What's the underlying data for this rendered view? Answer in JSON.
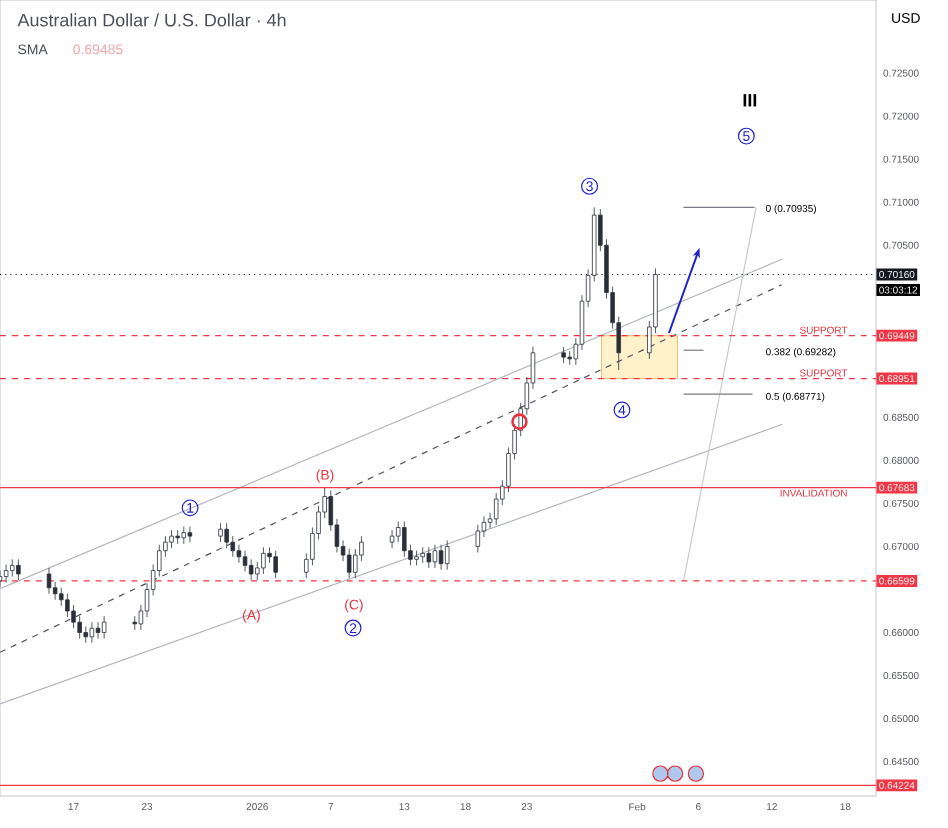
{
  "chart_data": {
    "type": "candlestick",
    "title": "Australian Dollar / U.S. Dollar · 4h",
    "ylabel": "USD",
    "color": "#2a2e39",
    "x": [
      "2025-12-11T00:00",
      "2025-12-11T12:00",
      "2025-12-12T00:00",
      "2025-12-12T12:00",
      "2025-12-15T00:00",
      "2025-12-15T12:00",
      "2025-12-16T00:00",
      "2025-12-16T12:00",
      "2025-12-17T00:00",
      "2025-12-17T12:00",
      "2025-12-18T00:00",
      "2025-12-18T12:00",
      "2025-12-19T00:00",
      "2025-12-19T12:00",
      "2025-12-22T00:00",
      "2025-12-22T12:00",
      "2025-12-23T00:00",
      "2025-12-23T12:00",
      "2025-12-24T00:00",
      "2025-12-24T12:00",
      "2025-12-25T00:00",
      "2025-12-25T12:00",
      "2025-12-26T00:00",
      "2025-12-26T12:00",
      "2025-12-29T00:00",
      "2025-12-29T12:00",
      "2025-12-30T00:00",
      "2025-12-30T12:00",
      "2025-12-31T00:00",
      "2025-12-31T12:00",
      "2026-01-01T00:00",
      "2026-01-01T12:00",
      "2026-01-02T00:00",
      "2026-01-02T12:00",
      "2026-01-05T00:00",
      "2026-01-05T12:00",
      "2026-01-06T00:00",
      "2026-01-06T12:00",
      "2026-01-07T00:00",
      "2026-01-07T12:00",
      "2026-01-08T00:00",
      "2026-01-08T12:00",
      "2026-01-09T00:00",
      "2026-01-09T12:00",
      "2026-01-12T00:00",
      "2026-01-12T12:00",
      "2026-01-13T00:00",
      "2026-01-13T12:00",
      "2026-01-14T00:00",
      "2026-01-14T12:00",
      "2026-01-15T00:00",
      "2026-01-15T12:00",
      "2026-01-16T00:00",
      "2026-01-16T12:00",
      "2026-01-19T00:00",
      "2026-01-19T12:00",
      "2026-01-20T00:00",
      "2026-01-20T12:00",
      "2026-01-21T00:00",
      "2026-01-21T12:00",
      "2026-01-22T00:00",
      "2026-01-22T12:00",
      "2026-01-23T00:00",
      "2026-01-23T12:00",
      "2026-01-26T00:00",
      "2026-01-26T12:00",
      "2026-01-27T00:00",
      "2026-01-27T12:00",
      "2026-01-28T00:00",
      "2026-01-28T12:00",
      "2026-01-29T00:00",
      "2026-01-29T12:00",
      "2026-01-30T00:00",
      "2026-01-30T12:00",
      "2026-02-02T00:00",
      "2026-02-02T12:00"
    ],
    "ohlc": [
      [
        0.666,
        0.6672,
        0.6653,
        0.6665
      ],
      [
        0.6665,
        0.6679,
        0.6658,
        0.6672
      ],
      [
        0.6672,
        0.6685,
        0.6665,
        0.6678
      ],
      [
        0.6678,
        0.6685,
        0.6661,
        0.6668
      ],
      [
        0.6668,
        0.6675,
        0.6645,
        0.6652
      ],
      [
        0.6652,
        0.6659,
        0.6638,
        0.6645
      ],
      [
        0.6645,
        0.6652,
        0.6631,
        0.6638
      ],
      [
        0.6638,
        0.6645,
        0.6618,
        0.6625
      ],
      [
        0.6625,
        0.6632,
        0.6605,
        0.6612
      ],
      [
        0.6612,
        0.6619,
        0.6593,
        0.66
      ],
      [
        0.66,
        0.6607,
        0.6588,
        0.6595
      ],
      [
        0.6595,
        0.6612,
        0.6588,
        0.6605
      ],
      [
        0.6605,
        0.6612,
        0.6593,
        0.66
      ],
      [
        0.66,
        0.6619,
        0.6593,
        0.6612
      ],
      [
        0.6612,
        0.6619,
        0.6603,
        0.661
      ],
      [
        0.661,
        0.6632,
        0.6603,
        0.6625
      ],
      [
        0.6625,
        0.6657,
        0.6618,
        0.665
      ],
      [
        0.665,
        0.6679,
        0.6643,
        0.6672
      ],
      [
        0.6672,
        0.6702,
        0.6665,
        0.6695
      ],
      [
        0.6695,
        0.6712,
        0.6688,
        0.6705
      ],
      [
        0.6705,
        0.6719,
        0.6698,
        0.6712
      ],
      [
        0.6712,
        0.6719,
        0.6703,
        0.671
      ],
      [
        0.671,
        0.6723,
        0.6703,
        0.6716
      ],
      [
        0.6716,
        0.6723,
        0.6705,
        0.6712
      ],
      [
        0.6712,
        0.6727,
        0.6705,
        0.672
      ],
      [
        0.672,
        0.6727,
        0.6698,
        0.6705
      ],
      [
        0.6705,
        0.6712,
        0.6688,
        0.6695
      ],
      [
        0.6695,
        0.6702,
        0.6681,
        0.6688
      ],
      [
        0.6688,
        0.6695,
        0.6671,
        0.6678
      ],
      [
        0.6678,
        0.6685,
        0.6661,
        0.6668
      ],
      [
        0.6668,
        0.6682,
        0.6661,
        0.6675
      ],
      [
        0.6675,
        0.6699,
        0.6668,
        0.6692
      ],
      [
        0.6692,
        0.6699,
        0.6681,
        0.6688
      ],
      [
        0.6688,
        0.6695,
        0.6663,
        0.667
      ],
      [
        0.667,
        0.6692,
        0.6663,
        0.6685
      ],
      [
        0.6685,
        0.6722,
        0.6678,
        0.6715
      ],
      [
        0.6715,
        0.6747,
        0.6708,
        0.674
      ],
      [
        0.674,
        0.6768,
        0.6733,
        0.6758
      ],
      [
        0.6758,
        0.6765,
        0.6718,
        0.6725
      ],
      [
        0.6725,
        0.6732,
        0.6693,
        0.67
      ],
      [
        0.67,
        0.6707,
        0.6683,
        0.669
      ],
      [
        0.669,
        0.6697,
        0.6663,
        0.667
      ],
      [
        0.667,
        0.6697,
        0.6663,
        0.669
      ],
      [
        0.669,
        0.6712,
        0.6683,
        0.6705
      ],
      [
        0.6705,
        0.6719,
        0.6698,
        0.6712
      ],
      [
        0.6712,
        0.6729,
        0.6705,
        0.6722
      ],
      [
        0.6722,
        0.6729,
        0.6688,
        0.6695
      ],
      [
        0.6695,
        0.6702,
        0.6678,
        0.6685
      ],
      [
        0.6685,
        0.6695,
        0.6678,
        0.6688
      ],
      [
        0.6688,
        0.6699,
        0.6681,
        0.6692
      ],
      [
        0.6692,
        0.6699,
        0.6675,
        0.6682
      ],
      [
        0.6682,
        0.6702,
        0.6675,
        0.6695
      ],
      [
        0.6695,
        0.6702,
        0.6673,
        0.668
      ],
      [
        0.668,
        0.6707,
        0.6673,
        0.67
      ],
      [
        0.67,
        0.6725,
        0.6693,
        0.6718
      ],
      [
        0.6718,
        0.6735,
        0.6711,
        0.6728
      ],
      [
        0.6728,
        0.6739,
        0.6721,
        0.6732
      ],
      [
        0.6732,
        0.6762,
        0.6725,
        0.6755
      ],
      [
        0.6755,
        0.6777,
        0.6748,
        0.677
      ],
      [
        0.677,
        0.6815,
        0.6763,
        0.6808
      ],
      [
        0.6808,
        0.6842,
        0.6801,
        0.6835
      ],
      [
        0.6835,
        0.6867,
        0.6828,
        0.686
      ],
      [
        0.686,
        0.6897,
        0.6853,
        0.689
      ],
      [
        0.689,
        0.6932,
        0.6883,
        0.6925
      ],
      [
        0.6925,
        0.6932,
        0.6913,
        0.692
      ],
      [
        0.692,
        0.6927,
        0.6911,
        0.6918
      ],
      [
        0.6918,
        0.6942,
        0.6911,
        0.6935
      ],
      [
        0.6935,
        0.6992,
        0.6928,
        0.6985
      ],
      [
        0.6985,
        0.7022,
        0.6978,
        0.7015
      ],
      [
        0.7015,
        0.7094,
        0.7008,
        0.7085
      ],
      [
        0.7085,
        0.7092,
        0.7043,
        0.705
      ],
      [
        0.705,
        0.7057,
        0.6988,
        0.6995
      ],
      [
        0.6995,
        0.7002,
        0.6953,
        0.696
      ],
      [
        0.696,
        0.6967,
        0.6905,
        0.6925
      ],
      [
        0.6925,
        0.6962,
        0.6918,
        0.6955
      ],
      [
        0.6955,
        0.7023,
        0.6948,
        0.7016
      ]
    ],
    "series": [
      {
        "type": "line",
        "color": "#b2b5be",
        "line_style": "solid",
        "x": [
          "2025-12-11T00:00",
          "2026-02-12T21:00"
        ],
        "values": [
          0.6651,
          0.7034
        ]
      },
      {
        "type": "line",
        "color": "#50535e",
        "line_style": "dashed",
        "x": [
          "2025-12-11T00:00",
          "2026-02-12T19:00"
        ],
        "values": [
          0.6577,
          0.7004
        ]
      },
      {
        "type": "line",
        "color": "#b2b5be",
        "line_style": "solid",
        "x": [
          "2025-12-11T00:00",
          "2026-02-12T21:00"
        ],
        "values": [
          0.6517,
          0.6842
        ]
      },
      {
        "type": "line",
        "color": "#c8cad0",
        "line_style": "solid",
        "x": [
          "2026-02-10T17:00",
          "2026-02-04T19:00"
        ],
        "values": [
          0.7094,
          0.666
        ]
      },
      {
        "type": "line",
        "color": "#787b86",
        "line_style": "solid",
        "x": [
          "2026-02-04T19:00",
          "2026-02-10T14:00"
        ],
        "values": [
          0.7094,
          0.7094
        ]
      },
      {
        "type": "line",
        "color": "#787b86",
        "line_style": "solid",
        "x": [
          "2026-02-04T19:00",
          "2026-02-06T10:00"
        ],
        "values": [
          0.6928,
          0.6928
        ]
      },
      {
        "type": "line",
        "color": "#787b86",
        "line_style": "solid",
        "x": [
          "2026-02-04T19:00",
          "2026-02-10T10:00"
        ],
        "values": [
          0.6877,
          0.6877
        ]
      }
    ],
    "xlim": [
      "2025-12-11T00:00",
      "2026-02-20T12:00"
    ],
    "ylim": [
      0.641,
      0.7335
    ],
    "xticks": [
      {
        "value": "2025-12-17",
        "label": "17"
      },
      {
        "value": "2025-12-23",
        "label": "23"
      },
      {
        "value": "2026-01-01",
        "label": "2026"
      },
      {
        "value": "2026-01-07",
        "label": "7"
      },
      {
        "value": "2026-01-13",
        "label": "13"
      },
      {
        "value": "2026-01-18",
        "label": "18"
      },
      {
        "value": "2026-01-23",
        "label": "23"
      },
      {
        "value": "2026-02-01",
        "label": "Feb"
      },
      {
        "value": "2026-02-06",
        "label": "6"
      },
      {
        "value": "2026-02-12",
        "label": "12"
      },
      {
        "value": "2026-02-18",
        "label": "18"
      }
    ],
    "yticks": [
      {
        "value": 0.725,
        "label": "0.72500"
      },
      {
        "value": 0.72,
        "label": "0.72000"
      },
      {
        "value": 0.715,
        "label": "0.71500"
      },
      {
        "value": 0.71,
        "label": "0.71000"
      },
      {
        "value": 0.705,
        "label": "0.70500"
      },
      {
        "value": 0.685,
        "label": "0.68500"
      },
      {
        "value": 0.68,
        "label": "0.68000"
      },
      {
        "value": 0.675,
        "label": "0.67500"
      },
      {
        "value": 0.67,
        "label": "0.67000"
      },
      {
        "value": 0.66,
        "label": "0.66000"
      },
      {
        "value": 0.655,
        "label": "0.65500"
      },
      {
        "value": 0.65,
        "label": "0.65000"
      },
      {
        "value": 0.645,
        "label": "0.64500"
      }
    ],
    "ref_lines": [
      {
        "axis": "y",
        "value": 0.7016,
        "label": "0.70160",
        "color": "#131722",
        "line_style": "dotted"
      },
      {
        "axis": "y",
        "value": 0.69449,
        "label": "0.69449",
        "color": "#f23645",
        "line_style": "dashed"
      },
      {
        "axis": "y",
        "value": 0.68951,
        "label": "0.68951",
        "color": "#f23645",
        "line_style": "dashed"
      },
      {
        "axis": "y",
        "value": 0.67683,
        "label": "0.67683",
        "color": "#f23645",
        "line_style": "solid"
      },
      {
        "axis": "y",
        "value": 0.66599,
        "label": "0.66599",
        "color": "#f23645",
        "line_style": "dashed"
      },
      {
        "axis": "y",
        "value": 0.64224,
        "label": "0.64224",
        "color": "#f23645",
        "line_style": "solid"
      }
    ],
    "annotations": [
      "SMA",
      "0.69485",
      "03:03:12",
      "III",
      "5",
      "3",
      "1",
      "(B)",
      "(A)",
      "(C)",
      "2",
      "4",
      "0 (0.70935)",
      "0.382 (0.69282)",
      "0.5 (0.68771)",
      {
        "text": "SUPPORT",
        "x": "2026-02-18T08:00",
        "y": 0.69449
      },
      {
        "text": "SUPPORT",
        "x": "2026-02-18T08:00",
        "y": 0.68951
      },
      {
        "text": "INVALIDATION",
        "x": "2026-02-18T08:00",
        "y": 0.67683
      }
    ]
  }
}
